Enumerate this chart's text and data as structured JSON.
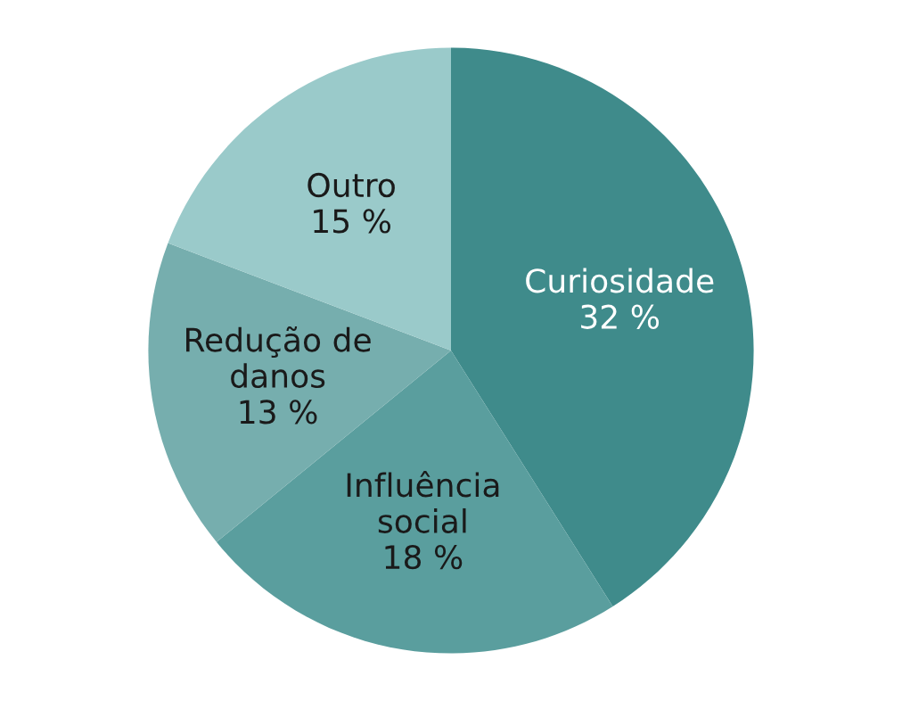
{
  "chart_data": {
    "type": "pie",
    "categories": [
      "Curiosidade",
      "Influência social",
      "Redução de danos",
      "Outro"
    ],
    "values": [
      32,
      18,
      13,
      15
    ],
    "value_labels": [
      "32 %",
      "18 %",
      "13 %",
      "15 %"
    ],
    "colors": [
      "#3f8b8b",
      "#5a9e9e",
      "#76aeae",
      "#9acaca"
    ]
  }
}
